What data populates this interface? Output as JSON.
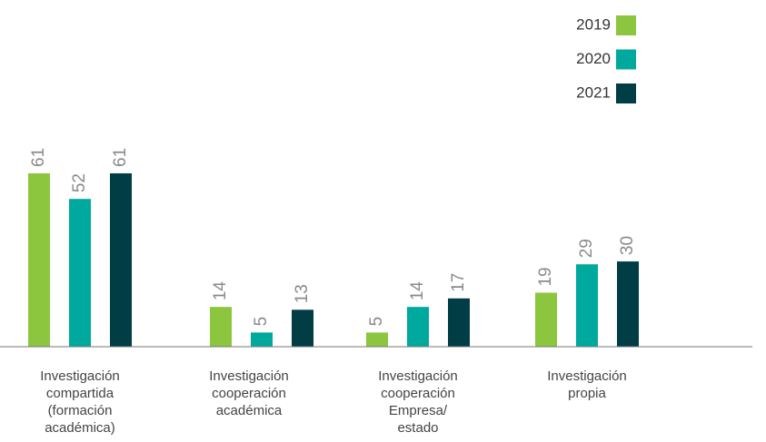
{
  "chart_data": {
    "type": "bar",
    "categories": [
      [
        "Investigación",
        "compartida",
        "(formación",
        "académica)"
      ],
      [
        "Investigación",
        "cooperación",
        "académica"
      ],
      [
        "Investigación",
        "cooperación",
        "Empresa/",
        "estado"
      ],
      [
        "Investigación",
        "propia"
      ]
    ],
    "series": [
      {
        "name": "2019",
        "color": "#8cc63f",
        "values": [
          61,
          14,
          5,
          19
        ]
      },
      {
        "name": "2020",
        "color": "#00a99d",
        "values": [
          52,
          5,
          14,
          29
        ]
      },
      {
        "name": "2021",
        "color": "#003d45",
        "values": [
          61,
          13,
          17,
          30
        ]
      }
    ],
    "legend": "top-right"
  }
}
